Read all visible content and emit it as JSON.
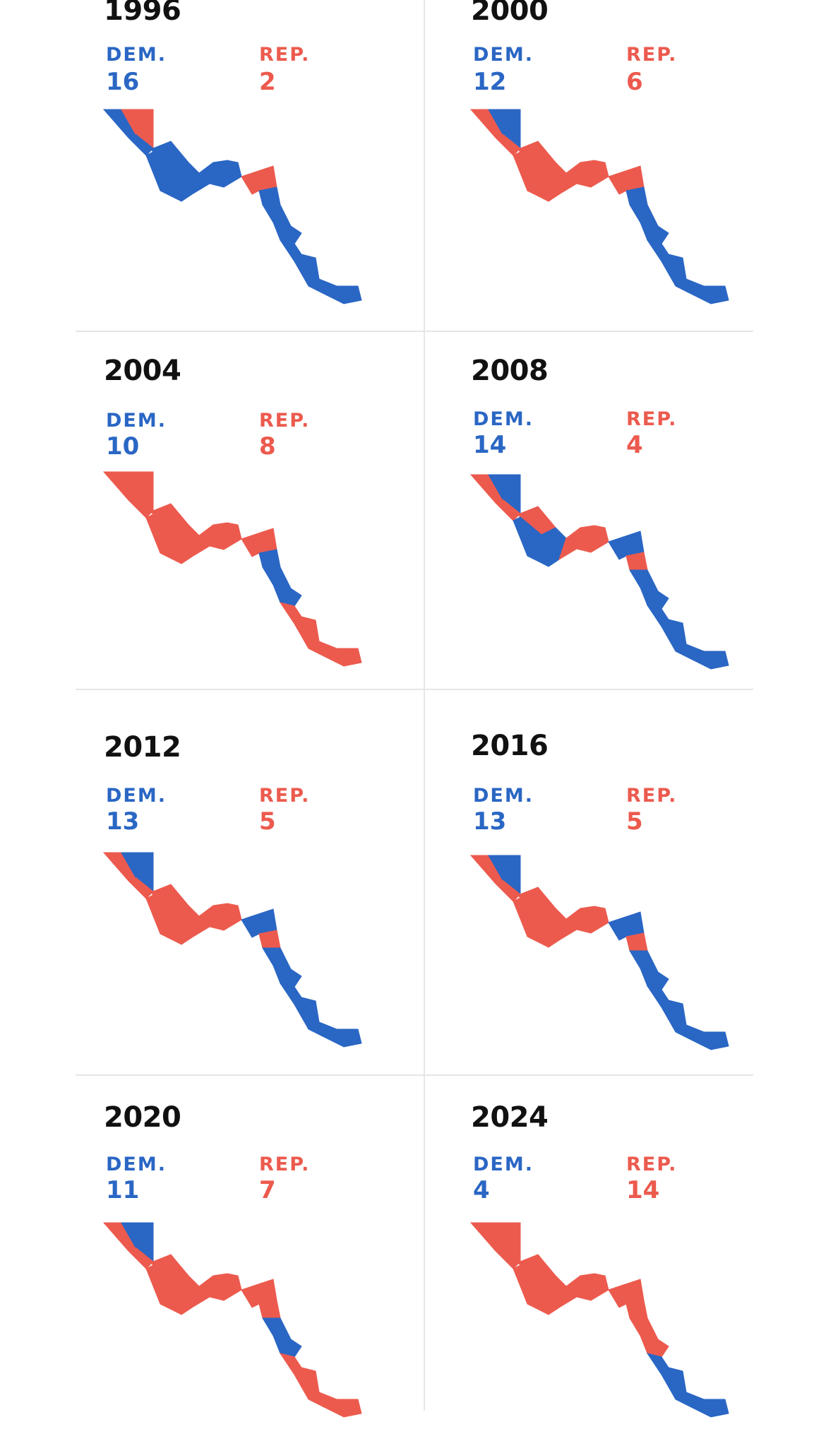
{
  "colors": {
    "dem": "#2a66c4",
    "rep": "#ec5a4e",
    "divider": "#e6e6e6"
  },
  "labels": {
    "dem": "DEM.",
    "rep": "REP."
  },
  "panels": [
    {
      "year": "1996",
      "dem": "16",
      "rep": "2",
      "regions": [
        "D",
        "R",
        "D",
        "D",
        "D",
        "R",
        "D",
        "D",
        "D"
      ]
    },
    {
      "year": "2000",
      "dem": "12",
      "rep": "6",
      "regions": [
        "R",
        "D",
        "R",
        "R",
        "R",
        "R",
        "D",
        "D",
        "D"
      ]
    },
    {
      "year": "2004",
      "dem": "10",
      "rep": "8",
      "regions": [
        "R",
        "R",
        "R",
        "R",
        "R",
        "R",
        "D",
        "D",
        "R"
      ]
    },
    {
      "year": "2008",
      "dem": "14",
      "rep": "4",
      "regions": [
        "R",
        "D",
        "R",
        "D",
        "R",
        "D",
        "R",
        "D",
        "D"
      ]
    },
    {
      "year": "2012",
      "dem": "13",
      "rep": "5",
      "regions": [
        "R",
        "D",
        "R",
        "R",
        "R",
        "D",
        "R",
        "D",
        "D"
      ]
    },
    {
      "year": "2016",
      "dem": "13",
      "rep": "5",
      "regions": [
        "R",
        "D",
        "R",
        "R",
        "R",
        "D",
        "R",
        "D",
        "D"
      ]
    },
    {
      "year": "2020",
      "dem": "11",
      "rep": "7",
      "regions": [
        "R",
        "D",
        "R",
        "R",
        "R",
        "R",
        "R",
        "D",
        "R"
      ]
    },
    {
      "year": "2024",
      "dem": "4",
      "rep": "14",
      "regions": [
        "R",
        "R",
        "R",
        "R",
        "R",
        "R",
        "R",
        "R",
        "D"
      ]
    }
  ]
}
